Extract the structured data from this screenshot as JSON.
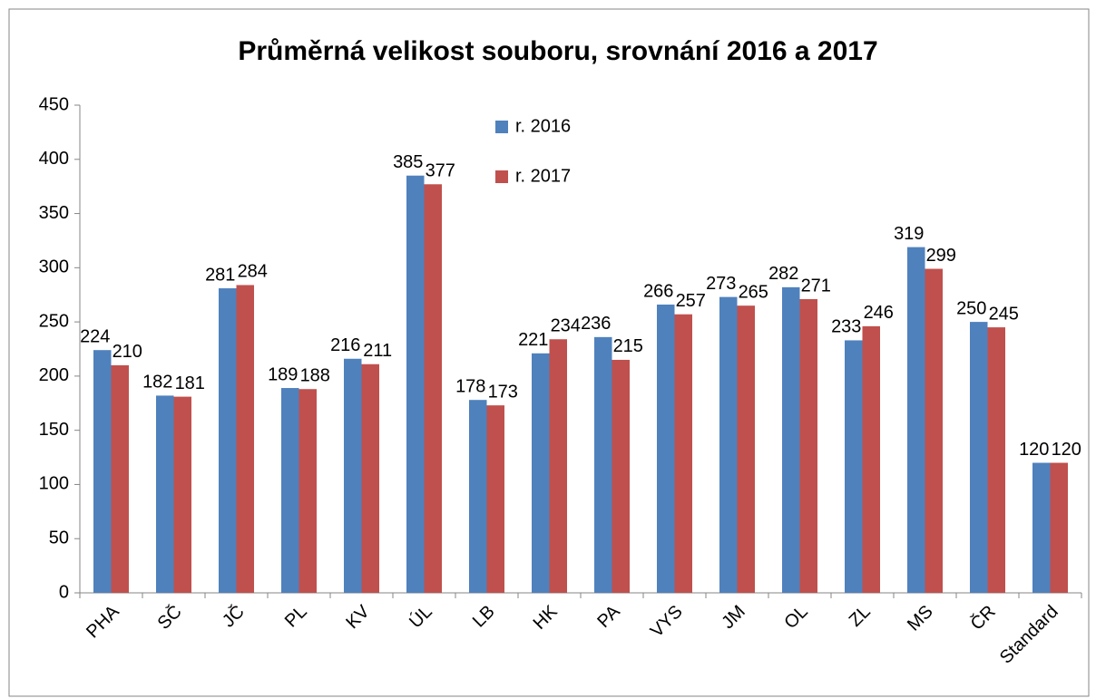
{
  "chart_data": {
    "type": "bar",
    "title": "Průměrná velikost souboru, srovnání 2016 a 2017",
    "categories": [
      "PHA",
      "SČ",
      "JČ",
      "PL",
      "KV",
      "ÚL",
      "LB",
      "HK",
      "PA",
      "VYS",
      "JM",
      "OL",
      "ZL",
      "MS",
      "ČR",
      "Standard"
    ],
    "series": [
      {
        "name": "r. 2016",
        "color": "#4f81bd",
        "values": [
          224,
          182,
          281,
          189,
          216,
          385,
          178,
          221,
          236,
          266,
          273,
          282,
          233,
          319,
          250,
          120
        ]
      },
      {
        "name": "r. 2017",
        "color": "#c0504d",
        "values": [
          210,
          181,
          284,
          188,
          211,
          377,
          173,
          234,
          215,
          257,
          265,
          271,
          246,
          299,
          245,
          120
        ]
      }
    ],
    "ylim": [
      0,
      450
    ],
    "yticks": [
      0,
      50,
      100,
      150,
      200,
      250,
      300,
      350,
      400,
      450
    ],
    "grid": false
  }
}
